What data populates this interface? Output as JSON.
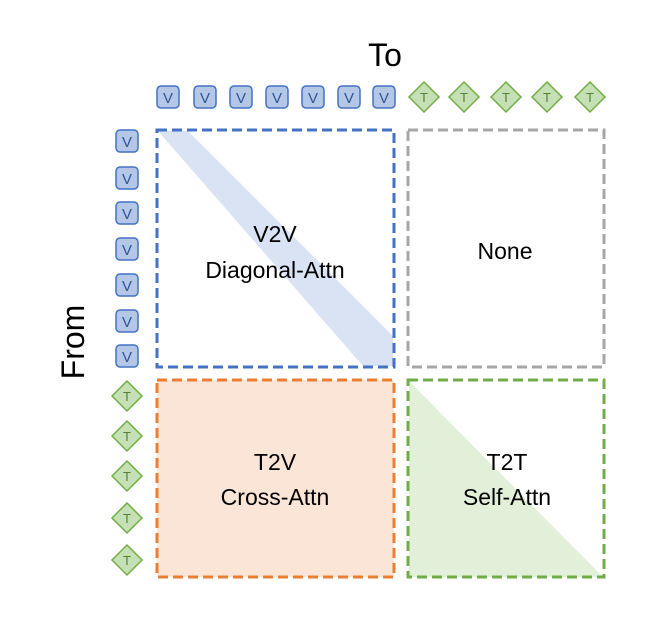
{
  "axis_labels": {
    "to": "To",
    "from": "From"
  },
  "tokens": {
    "vision": {
      "label": "V",
      "count": 7,
      "fill": "#b4c7e7",
      "stroke": "#4472c4",
      "text_color": "#2f5597"
    },
    "text": {
      "label": "T",
      "count": 5,
      "fill": "#c5e0b4",
      "stroke": "#70ad47",
      "text_color": "#548235"
    }
  },
  "blocks": [
    {
      "id": "v2v",
      "line1": "V2V",
      "line2": "Diagonal-Attn",
      "border": "#4472c4",
      "fill": "#dae3f3",
      "pattern": "diagonal"
    },
    {
      "id": "none",
      "line1": "None",
      "line2": "",
      "border": "#a6a6a6",
      "fill": "none",
      "pattern": "none"
    },
    {
      "id": "t2v",
      "line1": "T2V",
      "line2": "Cross-Attn",
      "border": "#ed7d31",
      "fill": "#fbe5d6",
      "pattern": "full"
    },
    {
      "id": "t2t",
      "line1": "T2T",
      "line2": "Self-Attn",
      "border": "#70ad47",
      "fill": "#e2f0d9",
      "pattern": "lower-triangle"
    }
  ]
}
